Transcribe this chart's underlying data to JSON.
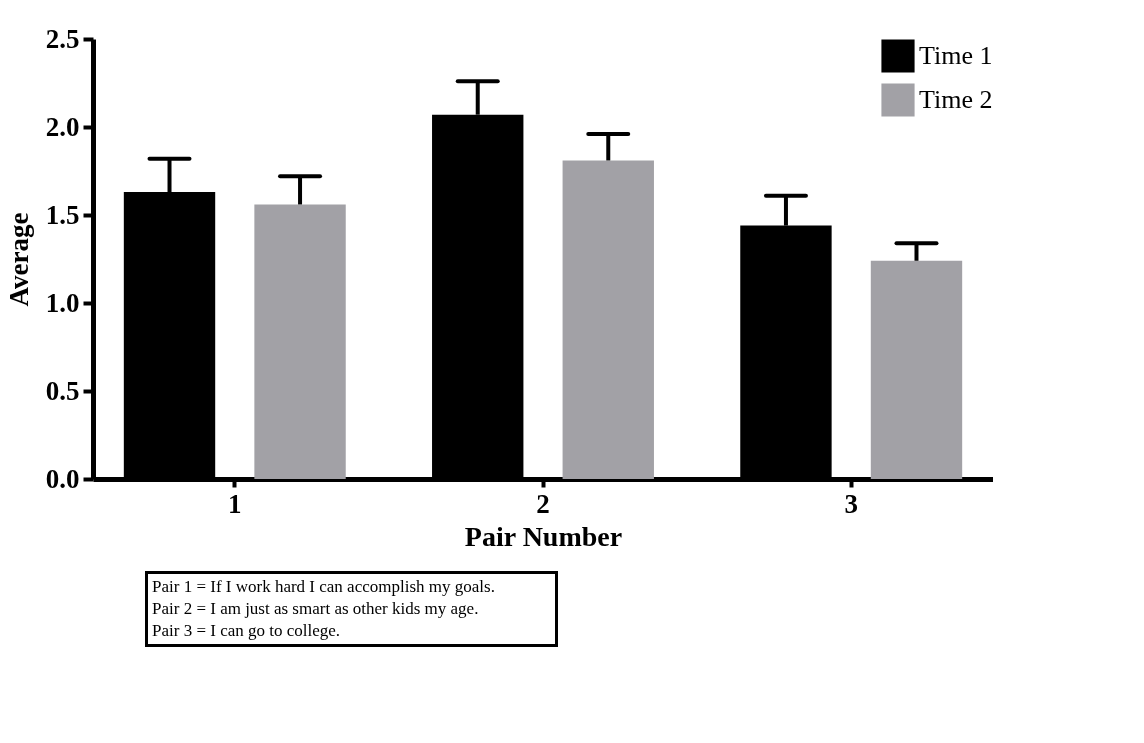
{
  "chart_data": {
    "type": "bar",
    "xlabel": "Pair Number",
    "ylabel": "Average",
    "categories": [
      "1",
      "2",
      "3"
    ],
    "series": [
      {
        "name": "Time 1",
        "color": "#000000",
        "values": [
          1.63,
          2.07,
          1.44
        ],
        "errors": [
          [
            1.63,
            1.82
          ],
          [
            2.07,
            2.26
          ],
          [
            1.44,
            1.61
          ]
        ]
      },
      {
        "name": "Time 2",
        "color": "#a2a1a6",
        "values": [
          1.56,
          1.81,
          1.24
        ],
        "errors": [
          [
            1.56,
            1.72
          ],
          [
            1.81,
            1.96
          ],
          [
            1.24,
            1.34
          ]
        ]
      }
    ],
    "ylim": [
      0,
      2.5
    ],
    "yticks": [
      {
        "value": 0,
        "label": "0.0"
      },
      {
        "value": 0.5,
        "label": "0.5"
      },
      {
        "value": 1,
        "label": "1.0"
      },
      {
        "value": 1.5,
        "label": "1.5"
      },
      {
        "value": 2,
        "label": "2.0"
      },
      {
        "value": 2.5,
        "label": "2.5"
      }
    ],
    "grid": false,
    "legend": "top right",
    "annotations": [
      "Pair 1 = If I work hard I can accomplish my goals.",
      "Pair 2 = I am just as smart as other kids my age.",
      "Pair 3 = I can go to college."
    ]
  }
}
